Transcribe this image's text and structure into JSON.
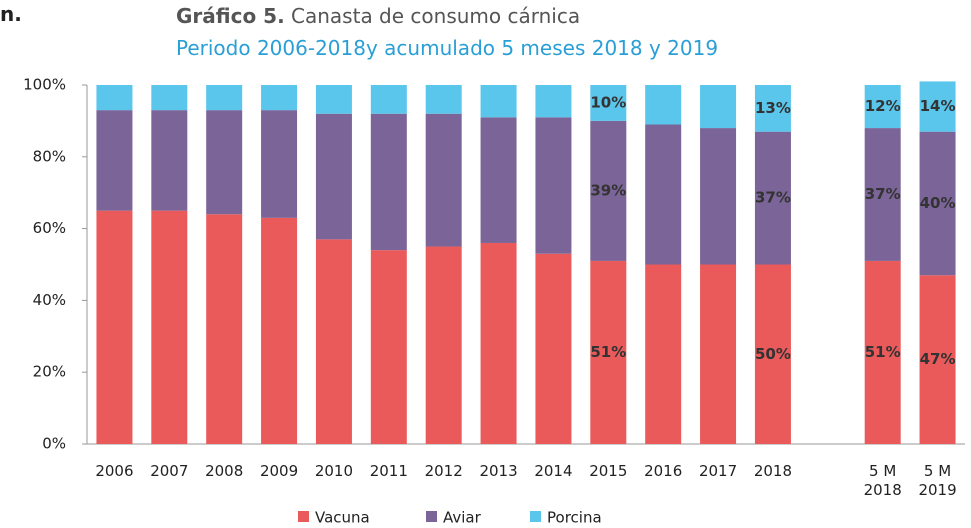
{
  "fragment": "n.",
  "chart_data": {
    "type": "stacked_bar",
    "title_prefix": "Gráfico 5.",
    "title": "Canasta de consumo cárnica",
    "subtitle": "Periodo 2006-2018y acumulado 5 meses 2018 y 2019",
    "categories": [
      "2006",
      "2007",
      "2008",
      "2009",
      "2010",
      "2011",
      "2012",
      "2013",
      "2014",
      "2015",
      "2016",
      "2017",
      "2018",
      null,
      "5 M 2018",
      "5 M 2019"
    ],
    "series": [
      {
        "name": "Vacuna",
        "color": "#ea5a5b",
        "values": [
          65,
          65,
          64,
          63,
          57,
          54,
          55,
          56,
          53,
          51,
          50,
          50,
          50,
          null,
          51,
          47
        ],
        "value_labels": [
          null,
          null,
          null,
          null,
          null,
          null,
          null,
          null,
          null,
          "51%",
          null,
          null,
          "50%",
          null,
          "51%",
          "47%"
        ]
      },
      {
        "name": "Aviar",
        "color": "#7b6497",
        "values": [
          28,
          28,
          29,
          30,
          35,
          38,
          37,
          35,
          38,
          39,
          39,
          38,
          37,
          null,
          37,
          40
        ],
        "value_labels": [
          null,
          null,
          null,
          null,
          null,
          null,
          null,
          null,
          null,
          "39%",
          null,
          null,
          "37%",
          null,
          "37%",
          "40%"
        ]
      },
      {
        "name": "Porcina",
        "color": "#5ac6ec",
        "values": [
          7,
          7,
          7,
          7,
          8,
          8,
          8,
          9,
          9,
          10,
          11,
          12,
          13,
          null,
          12,
          14
        ],
        "value_labels": [
          null,
          null,
          null,
          null,
          null,
          null,
          null,
          null,
          null,
          "10%",
          null,
          null,
          "13%",
          null,
          "12%",
          "14%"
        ]
      }
    ],
    "ylim": [
      0,
      100
    ],
    "yticks": [
      {
        "value": 0,
        "label": "0%"
      },
      {
        "value": 20,
        "label": "20%"
      },
      {
        "value": 40,
        "label": "40%"
      },
      {
        "value": 60,
        "label": "60%"
      },
      {
        "value": 80,
        "label": "80%"
      },
      {
        "value": 100,
        "label": "100%"
      }
    ],
    "legend": "bottom"
  }
}
